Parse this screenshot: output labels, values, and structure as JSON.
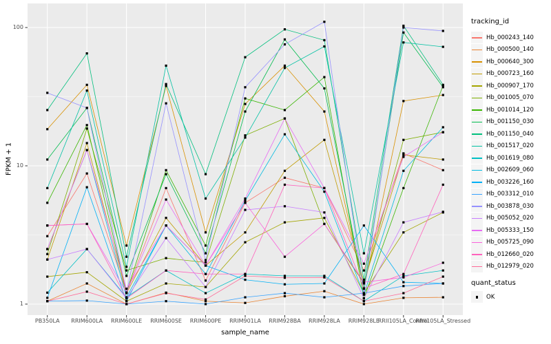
{
  "figure": {
    "bg": "#FFFFFF",
    "panel_bg": "#EBEBEB",
    "grid_color": "#FFFFFF",
    "tick_color": "#333333",
    "tick_label_color": "#4D4D4D",
    "axis_title_color": "#000000",
    "point_color": "#000000"
  },
  "legend": {
    "tracking_title": "tracking_id",
    "quant_title": "quant_status",
    "quant_items": [
      {
        "label": "OK",
        "marker": "black-filled-square"
      }
    ]
  },
  "chart_data": {
    "type": "line",
    "title": "",
    "xlabel": "sample_name",
    "ylabel": "FPKM + 1",
    "y_scale": "log10",
    "y_ticks": [
      1,
      10,
      100
    ],
    "y_minor_ticks": [
      3.162,
      31.62
    ],
    "ylim": [
      0.83,
      149
    ],
    "grid": true,
    "legend_position": "right",
    "marker": "filled-square",
    "samples": [
      "PB350LA",
      "RRIM600LA",
      "RRIM600LE",
      "RRIM600SE",
      "RRIM600PE",
      "RRIM901LA",
      "RRIM928BA",
      "RRIM928LA",
      "RRIM928LE",
      "RRII105LA_Control",
      "RRII105LA_Stressed"
    ],
    "series": [
      {
        "name": "Hb_000243_140",
        "color": "#F8766D",
        "values": [
          3.1,
          8.8,
          1.21,
          6.9,
          1.48,
          5.4,
          8.2,
          6.9,
          1.75,
          12.3,
          9.3
        ]
      },
      {
        "name": "Hb_000500_140",
        "color": "#EA8331",
        "values": [
          1.05,
          1.41,
          1.0,
          1.21,
          1.05,
          1.02,
          1.14,
          1.24,
          1.0,
          1.11,
          1.12
        ]
      },
      {
        "name": "Hb_000640_300",
        "color": "#D89000",
        "values": [
          18.4,
          38.5,
          2.65,
          37.8,
          3.3,
          28.0,
          53.0,
          24.7,
          1.3,
          29.4,
          32.5
        ]
      },
      {
        "name": "Hb_000723_160",
        "color": "#C09B00",
        "values": [
          2.1,
          14.6,
          1.2,
          4.2,
          1.9,
          3.3,
          9.2,
          15.4,
          1.44,
          12.0,
          11.1
        ]
      },
      {
        "name": "Hb_000907_170",
        "color": "#A3A500",
        "values": [
          1.58,
          1.7,
          1.05,
          1.41,
          1.33,
          2.8,
          3.9,
          4.2,
          1.2,
          3.3,
          4.6
        ]
      },
      {
        "name": "Hb_001005_070",
        "color": "#7CAE00",
        "values": [
          2.3,
          18.6,
          1.75,
          2.15,
          2.0,
          16.6,
          22.0,
          3.8,
          1.41,
          15.4,
          17.5
        ]
      },
      {
        "name": "Hb_001014_120",
        "color": "#39B600",
        "values": [
          5.4,
          19.7,
          1.21,
          9.3,
          2.65,
          30.7,
          25.3,
          43.8,
          1.1,
          6.9,
          38.0
        ]
      },
      {
        "name": "Hb_001150_030",
        "color": "#00BB4E",
        "values": [
          11.1,
          26.2,
          1.6,
          8.7,
          2.33,
          24.7,
          82.0,
          36.3,
          1.29,
          92.0,
          37.0
        ]
      },
      {
        "name": "Hb_001150_040",
        "color": "#00BF7D",
        "values": [
          25.3,
          65.0,
          2.2,
          39.0,
          8.7,
          61.0,
          97.0,
          81.0,
          1.5,
          103.0,
          38.5
        ]
      },
      {
        "name": "Hb_001517_020",
        "color": "#00C1A3",
        "values": [
          6.9,
          35.0,
          1.86,
          53.0,
          5.8,
          16.0,
          51.0,
          73.0,
          2.33,
          78.0,
          72.5
        ]
      },
      {
        "name": "Hb_001619_080",
        "color": "#00BFC4",
        "values": [
          1.21,
          2.5,
          1.12,
          1.75,
          1.2,
          1.65,
          1.6,
          1.6,
          1.05,
          1.6,
          1.75
        ]
      },
      {
        "name": "Hb_002609_060",
        "color": "#00BAE0",
        "values": [
          2.5,
          13.0,
          1.12,
          3.7,
          1.65,
          5.6,
          16.9,
          6.5,
          1.17,
          9.2,
          19.0
        ]
      },
      {
        "name": "Hb_003226_160",
        "color": "#00B0F6",
        "values": [
          1.11,
          7.0,
          1.05,
          3.7,
          1.9,
          1.5,
          1.39,
          1.41,
          3.7,
          1.44,
          1.41
        ]
      },
      {
        "name": "Hb_003312_010",
        "color": "#35A2FF",
        "values": [
          1.05,
          1.06,
          1.0,
          1.05,
          1.0,
          1.12,
          1.2,
          1.12,
          1.2,
          1.35,
          1.41
        ]
      },
      {
        "name": "Hb_003878_030",
        "color": "#9590FF",
        "values": [
          33.7,
          26.2,
          1.21,
          28.3,
          2.08,
          37.0,
          75.5,
          110.0,
          1.2,
          100.0,
          94.5
        ]
      },
      {
        "name": "Hb_005052_020",
        "color": "#C77CFF",
        "values": [
          2.1,
          2.5,
          1.1,
          3.0,
          1.33,
          4.8,
          5.1,
          4.6,
          1.1,
          3.9,
          4.65
        ]
      },
      {
        "name": "Hb_005333_150",
        "color": "#E76BF3",
        "values": [
          3.7,
          3.8,
          1.21,
          5.7,
          1.9,
          5.8,
          22.0,
          6.9,
          1.96,
          11.6,
          17.5
        ]
      },
      {
        "name": "Hb_005725_090",
        "color": "#FA62DB",
        "values": [
          2.5,
          13.0,
          1.29,
          3.7,
          1.9,
          5.4,
          2.2,
          3.8,
          1.44,
          1.56,
          1.99
        ]
      },
      {
        "name": "Hb_012660_020",
        "color": "#FF62BC",
        "values": [
          3.7,
          3.8,
          1.1,
          1.75,
          1.65,
          1.65,
          7.3,
          6.9,
          1.3,
          1.65,
          7.3
        ]
      },
      {
        "name": "Hb_012979_020",
        "color": "#FF6A98",
        "values": [
          1.05,
          1.23,
          1.0,
          1.2,
          1.08,
          1.6,
          1.55,
          1.56,
          1.05,
          1.2,
          1.58
        ]
      }
    ]
  }
}
